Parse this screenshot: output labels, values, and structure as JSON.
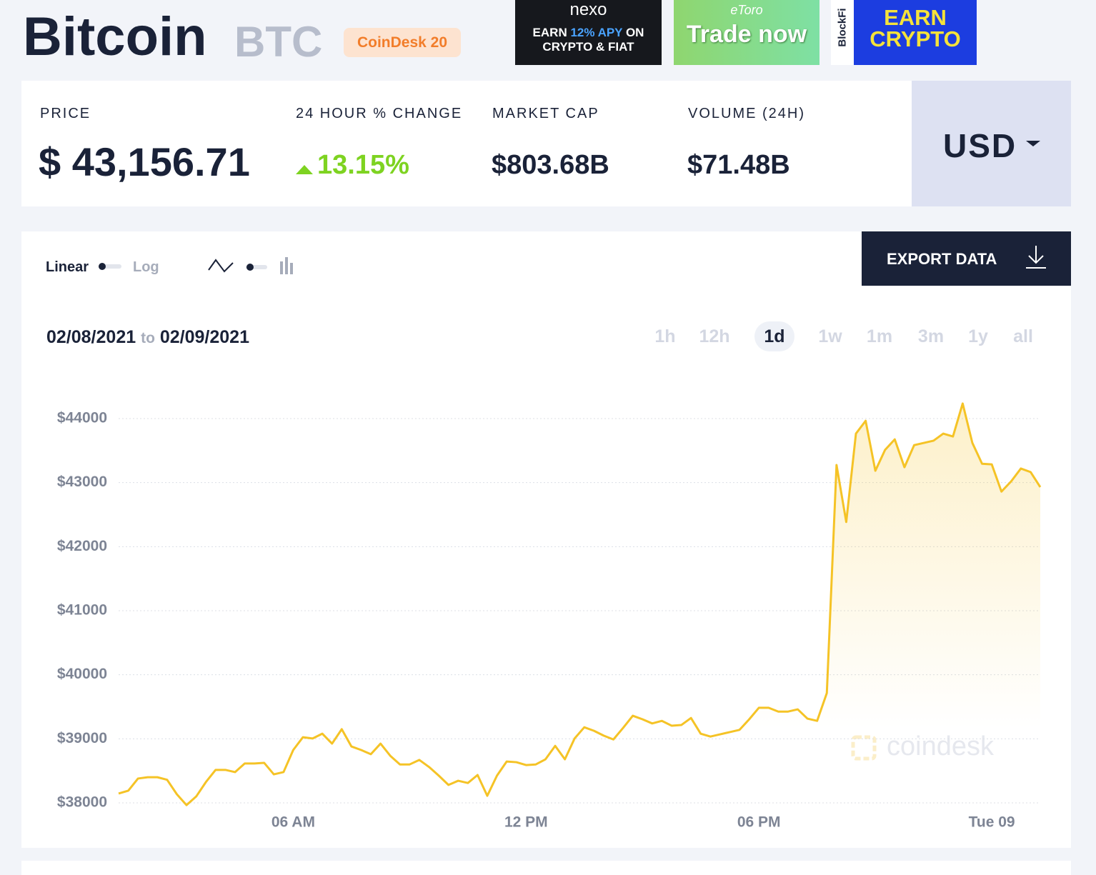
{
  "header": {
    "title": "Bitcoin",
    "symbol": "BTC",
    "badge": "CoinDesk 20"
  },
  "ads": [
    {
      "brand": "nexo",
      "text_1": "EARN",
      "highlight": "12% APY",
      "text_2": "ON",
      "text_3": "CRYPTO & FIAT"
    },
    {
      "brand": "eToro",
      "text": "Trade now"
    },
    {
      "brand": "BlockFi",
      "text": "EARN CRYPTO"
    }
  ],
  "stats": [
    {
      "label": "PRICE",
      "value": "$ 43,156.71"
    },
    {
      "label": "24 HOUR % CHANGE",
      "value": "13.15%"
    },
    {
      "label": "MARKET CAP",
      "value": "$803.68B"
    },
    {
      "label": "VOLUME (24H)",
      "value": "$71.48B"
    }
  ],
  "currency": "USD",
  "controls": {
    "linear": "Linear",
    "log": "Log",
    "export": "EXPORT DATA",
    "date_from": "02/08/2021",
    "date_to_word": "to",
    "date_to": "02/09/2021",
    "ranges": [
      {
        "label": "1h",
        "active": false
      },
      {
        "label": "12h",
        "active": false
      },
      {
        "label": "1d",
        "active": true
      },
      {
        "label": "1w",
        "active": false
      },
      {
        "label": "1m",
        "active": false
      },
      {
        "label": "3m",
        "active": false
      },
      {
        "label": "1y",
        "active": false
      },
      {
        "label": "all",
        "active": false
      }
    ]
  },
  "watermark": "coindesk",
  "chart_data": {
    "type": "line",
    "color": "#f5c326",
    "grid": true,
    "area_fill": true,
    "xlim": [
      1.5,
      25.25
    ],
    "ylim": [
      37900,
      44400
    ],
    "xticks": [
      {
        "value": 6,
        "label": "06 AM"
      },
      {
        "value": 12,
        "label": "12 PM"
      },
      {
        "value": 18,
        "label": "06 PM"
      },
      {
        "value": 24,
        "label": "Tue 09"
      }
    ],
    "yticks": [
      {
        "value": 38000,
        "label": "$38000"
      },
      {
        "value": 39000,
        "label": "$39000"
      },
      {
        "value": 40000,
        "label": "$40000"
      },
      {
        "value": 41000,
        "label": "$41000"
      },
      {
        "value": 42000,
        "label": "$42000"
      },
      {
        "value": 43000,
        "label": "$43000"
      },
      {
        "value": 44000,
        "label": "$44000"
      }
    ],
    "x": [
      1.5,
      1.75,
      2,
      2.25,
      2.5,
      2.75,
      3,
      3.25,
      3.5,
      3.75,
      4,
      4.25,
      4.5,
      4.75,
      5,
      5.25,
      5.5,
      5.75,
      6,
      6.25,
      6.5,
      6.75,
      7,
      7.25,
      7.5,
      7.75,
      8,
      8.25,
      8.5,
      8.75,
      9,
      9.25,
      9.5,
      9.75,
      10,
      10.25,
      10.5,
      10.75,
      11,
      11.25,
      11.5,
      11.75,
      12,
      12.25,
      12.5,
      12.75,
      13,
      13.25,
      13.5,
      13.75,
      14,
      14.25,
      14.5,
      14.75,
      15,
      15.25,
      15.5,
      15.75,
      16,
      16.25,
      16.5,
      16.75,
      17,
      17.25,
      17.5,
      17.75,
      18,
      18.25,
      18.5,
      18.75,
      19,
      19.25,
      19.5,
      19.75,
      20,
      20.25,
      20.5,
      20.75,
      21,
      21.25,
      21.5,
      21.75,
      22,
      22.25,
      22.5,
      22.75,
      23,
      23.25,
      23.5,
      23.75,
      24,
      24.25,
      24.5,
      24.75,
      25,
      25.25
    ],
    "values": [
      38145,
      38190,
      38380,
      38400,
      38400,
      38360,
      38135,
      37965,
      38100,
      38325,
      38515,
      38515,
      38480,
      38615,
      38615,
      38625,
      38445,
      38480,
      38825,
      39025,
      39005,
      39080,
      38925,
      39150,
      38880,
      38825,
      38760,
      38925,
      38735,
      38600,
      38600,
      38670,
      38560,
      38425,
      38280,
      38345,
      38310,
      38435,
      38110,
      38425,
      38645,
      38635,
      38590,
      38600,
      38680,
      38890,
      38680,
      39005,
      39180,
      39125,
      39050,
      38990,
      39170,
      39360,
      39305,
      39240,
      39280,
      39205,
      39215,
      39325,
      39080,
      39035,
      39070,
      39105,
      39140,
      39305,
      39485,
      39485,
      39425,
      39425,
      39460,
      39315,
      39280,
      39715,
      43275,
      42385,
      43765,
      43965,
      43185,
      43510,
      43675,
      43240,
      43585,
      43620,
      43655,
      43765,
      43720,
      44235,
      43620,
      43295,
      43285,
      42860,
      43020,
      43220,
      43165,
      42930
    ]
  }
}
